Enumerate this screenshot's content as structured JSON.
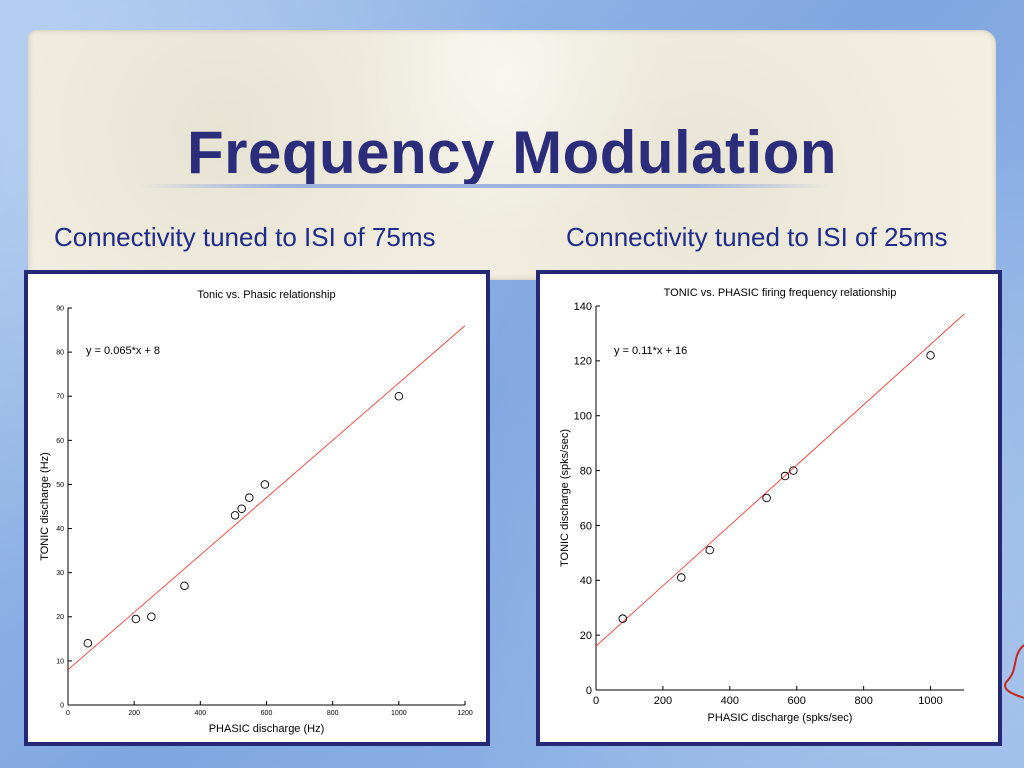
{
  "slide": {
    "title": "Frequency Modulation",
    "subtitle_left": "Connectivity tuned to ISI of 75ms",
    "subtitle_right": "Connectivity tuned to ISI of 25ms"
  },
  "colors": {
    "title": "#2b2c7a",
    "subtitle": "#1f2a8a",
    "panel_border": "#252877",
    "fit_line": "#ff3b2f"
  },
  "chart_data": [
    {
      "type": "scatter",
      "title": "Tonic vs. Phasic relationship",
      "xlabel": "PHASIC discharge (Hz)",
      "ylabel": "TONIC discharge (Hz)",
      "xlim": [
        0,
        1200
      ],
      "ylim": [
        0,
        90
      ],
      "xticks": [
        0,
        200,
        400,
        600,
        800,
        1000,
        1200
      ],
      "yticks": [
        0,
        10,
        20,
        30,
        40,
        50,
        60,
        70,
        80,
        90
      ],
      "equation": "y = 0.065*x + 8",
      "fit": {
        "slope": 0.065,
        "intercept": 8,
        "x_range": [
          0,
          1200
        ]
      },
      "points": [
        {
          "x": 60,
          "y": 14
        },
        {
          "x": 205,
          "y": 19.5
        },
        {
          "x": 252,
          "y": 20
        },
        {
          "x": 352,
          "y": 27
        },
        {
          "x": 505,
          "y": 43
        },
        {
          "x": 525,
          "y": 44.5
        },
        {
          "x": 548,
          "y": 47
        },
        {
          "x": 595,
          "y": 50
        },
        {
          "x": 1000,
          "y": 70
        }
      ]
    },
    {
      "type": "scatter",
      "title": "TONIC vs. PHASIC firing frequency relationship",
      "xlabel": "PHASIC discharge (spks/sec)",
      "ylabel": "TONIC discharge (spks/sec)",
      "xlim": [
        0,
        1100
      ],
      "ylim": [
        0,
        140
      ],
      "xticks": [
        0,
        200,
        400,
        600,
        800,
        1000
      ],
      "yticks": [
        0,
        20,
        40,
        60,
        80,
        100,
        120,
        140
      ],
      "equation": "y = 0.11*x + 16",
      "fit": {
        "slope": 0.11,
        "intercept": 16,
        "x_range": [
          0,
          1100
        ]
      },
      "points": [
        {
          "x": 80,
          "y": 26
        },
        {
          "x": 255,
          "y": 41
        },
        {
          "x": 340,
          "y": 51
        },
        {
          "x": 510,
          "y": 70
        },
        {
          "x": 565,
          "y": 78
        },
        {
          "x": 590,
          "y": 80
        },
        {
          "x": 1000,
          "y": 122
        }
      ]
    }
  ]
}
